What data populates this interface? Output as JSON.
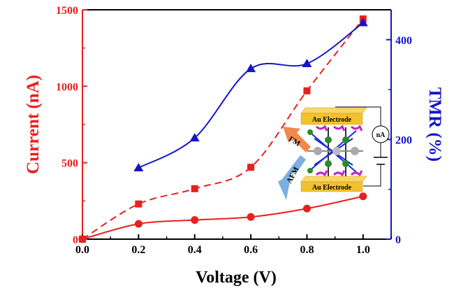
{
  "chart_data": {
    "type": "scatter",
    "x_axis": {
      "label": "Voltage (V)",
      "range": [
        0,
        1.1
      ],
      "ticks": [
        0.0,
        0.2,
        0.4,
        0.6,
        0.8,
        1.0
      ],
      "tick_labels": [
        "0.0",
        "0.2",
        "0.4",
        "0.6",
        "0.8",
        "1.0"
      ]
    },
    "y_left": {
      "label": "Current (nA)",
      "range": [
        0,
        1500
      ],
      "ticks": [
        0,
        500,
        1000,
        1500
      ],
      "tick_labels": [
        "0",
        "500",
        "1000",
        "1500"
      ],
      "color": "#e8201e"
    },
    "y_right": {
      "label": "TMR (%)",
      "range": [
        0,
        460
      ],
      "ticks": [
        0,
        200,
        400
      ],
      "tick_labels": [
        "0",
        "200",
        "400"
      ],
      "color": "#1414c8"
    },
    "series": [
      {
        "id": "fm-current",
        "axis": "left",
        "marker": "square",
        "color": "#e8201e",
        "line": "dashed",
        "x": [
          0.0,
          0.2,
          0.4,
          0.6,
          0.8,
          1.0
        ],
        "y": [
          0,
          230,
          330,
          470,
          970,
          1440
        ]
      },
      {
        "id": "afm-current",
        "axis": "left",
        "marker": "circle",
        "color": "#e8201e",
        "line": "solid",
        "x": [
          0.0,
          0.2,
          0.4,
          0.6,
          0.8,
          1.0
        ],
        "y": [
          0,
          100,
          125,
          145,
          200,
          280
        ]
      },
      {
        "id": "tmr",
        "axis": "right",
        "marker": "triangle",
        "color": "#1414c8",
        "line": "solid",
        "x": [
          0.2,
          0.4,
          0.6,
          0.8,
          1.0
        ],
        "y": [
          143,
          203,
          342,
          352,
          434
        ]
      }
    ],
    "inset": {
      "electrode_top": "Au Electrode",
      "electrode_bottom": "Au Electrode",
      "meter": "nA",
      "arrow_fm": "FM",
      "arrow_afm": "AFM",
      "colors": {
        "electrode": "#f2c12e",
        "fm_arrow": "#f08a4b",
        "afm_arrow": "#7bb0e0",
        "spin": "#c81ec8",
        "atom": "#2a8a2a"
      }
    }
  }
}
